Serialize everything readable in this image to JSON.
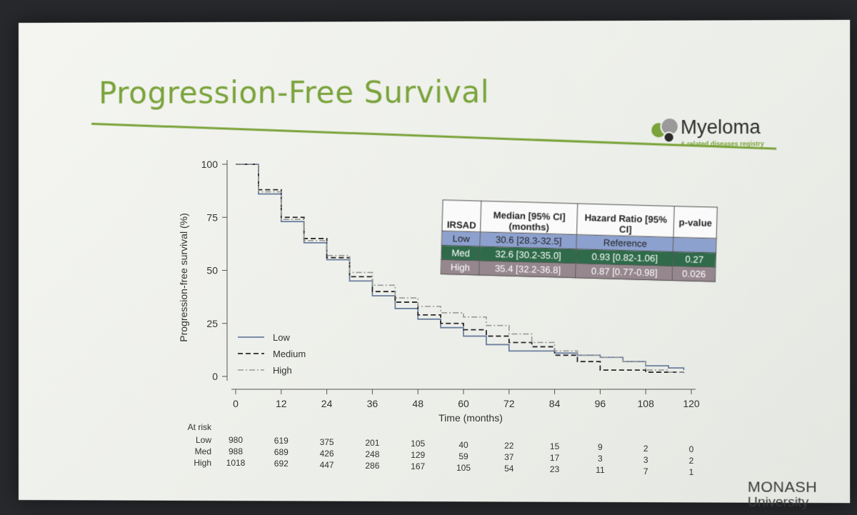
{
  "slide": {
    "title": "Progression-Free Survival",
    "logo_text": "Myeloma",
    "logo_subtext": "& related diseases registry",
    "university_line1": "MONASH",
    "university_line2": "University"
  },
  "colors": {
    "title_green": "#7aa33a",
    "low": "#6b7f9e",
    "medium": "#2a2a2a",
    "high": "#9a9a9a",
    "table_low": "#8da1cf",
    "table_med": "#2f6b4a",
    "table_high": "#96868d"
  },
  "chart_data": {
    "type": "line",
    "xlabel": "Time (months)",
    "ylabel": "Progression-free survival (%)",
    "xlim": [
      0,
      120
    ],
    "ylim": [
      0,
      100
    ],
    "xticks": [
      0,
      12,
      24,
      36,
      48,
      60,
      72,
      84,
      96,
      108,
      120
    ],
    "yticks": [
      0,
      25,
      50,
      75,
      100
    ],
    "legend_position": "bottom-left",
    "series": [
      {
        "name": "Low",
        "style": "solid",
        "x": [
          0,
          6,
          12,
          18,
          24,
          30,
          36,
          42,
          48,
          54,
          60,
          66,
          72,
          78,
          84,
          90,
          96,
          102,
          108,
          114,
          118
        ],
        "y": [
          100,
          86,
          73,
          63,
          55,
          45,
          38,
          32,
          27,
          23,
          19,
          15,
          12,
          12,
          11,
          10,
          9,
          7,
          5,
          4,
          3
        ]
      },
      {
        "name": "Medium",
        "style": "dashed",
        "x": [
          0,
          6,
          12,
          18,
          24,
          30,
          36,
          42,
          48,
          54,
          60,
          66,
          72,
          78,
          84,
          90,
          96,
          102,
          108,
          114,
          118
        ],
        "y": [
          100,
          88,
          75,
          65,
          56,
          47,
          40,
          35,
          29,
          25,
          22,
          19,
          16,
          14,
          10,
          7,
          3,
          3,
          2,
          2,
          2
        ]
      },
      {
        "name": "High",
        "style": "dash-dot",
        "x": [
          0,
          6,
          12,
          18,
          24,
          30,
          36,
          42,
          48,
          54,
          60,
          66,
          72,
          78,
          84,
          90,
          96,
          102,
          108,
          114,
          118
        ],
        "y": [
          100,
          87,
          74,
          64,
          57,
          49,
          43,
          37,
          33,
          30,
          28,
          24,
          20,
          16,
          12,
          10,
          9,
          7,
          3,
          2,
          1
        ]
      }
    ],
    "at_risk": {
      "header": "At risk",
      "times": [
        0,
        12,
        24,
        36,
        48,
        60,
        72,
        84,
        96,
        108,
        120
      ],
      "rows": [
        {
          "label": "Low",
          "values": [
            "980",
            "619",
            "375",
            "201",
            "105",
            "40",
            "22",
            "15",
            "9",
            "2",
            "0"
          ]
        },
        {
          "label": "Med",
          "values": [
            "988",
            "689",
            "426",
            "248",
            "129",
            "59",
            "37",
            "17",
            "3",
            "3",
            "2"
          ]
        },
        {
          "label": "High",
          "values": [
            "1018",
            "692",
            "447",
            "286",
            "167",
            "105",
            "54",
            "23",
            "11",
            "7",
            "1"
          ]
        }
      ]
    },
    "table": {
      "headers": [
        "IRSAD",
        "Median [95% CI] (months)",
        "Hazard Ratio [95% CI]",
        "p-value"
      ],
      "rows": [
        {
          "group": "Low",
          "median": "30.6 [28.3-32.5]",
          "hr": "Reference",
          "p": ""
        },
        {
          "group": "Med",
          "median": "32.6 [30.2-35.0]",
          "hr": "0.93 [0.82-1.06]",
          "p": "0.27"
        },
        {
          "group": "High",
          "median": "35.4 [32.2-36.8]",
          "hr": "0.87 [0.77-0.98]",
          "p": "0.026"
        }
      ]
    }
  }
}
